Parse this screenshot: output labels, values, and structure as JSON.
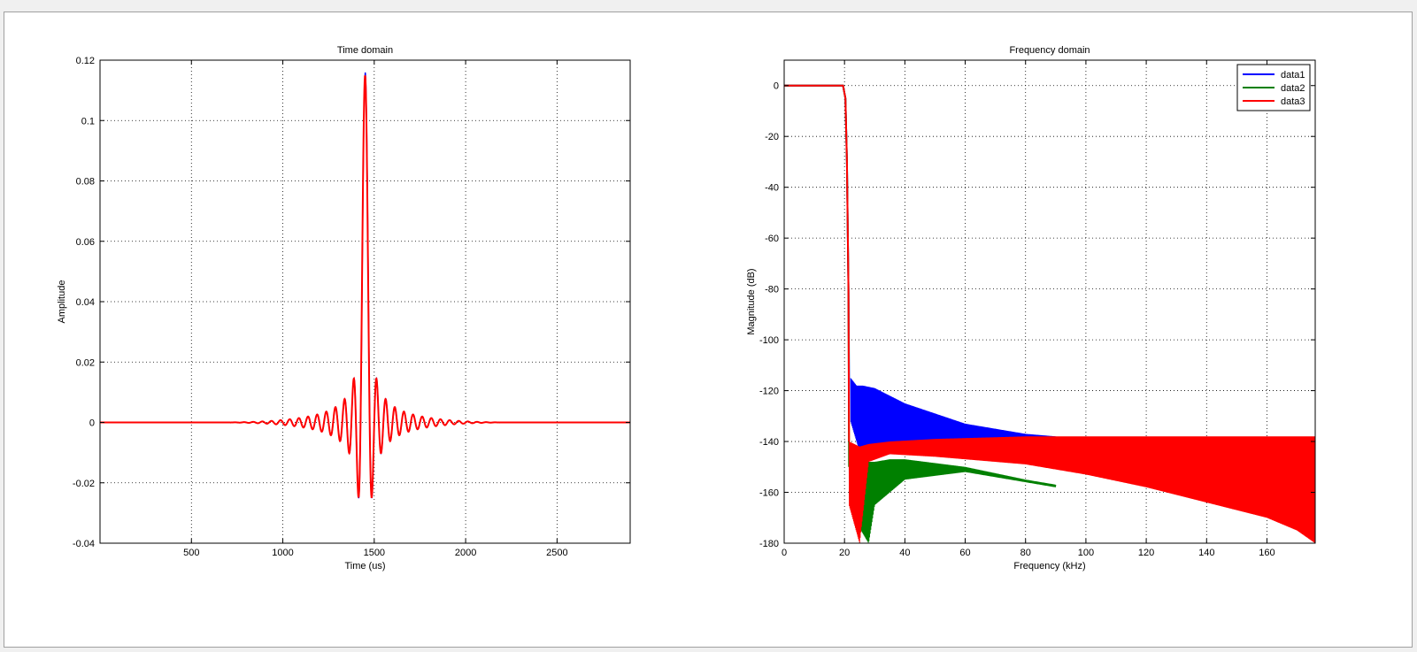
{
  "colors": {
    "data1": "#0000ff",
    "data2": "#008000",
    "data3": "#ff0000"
  },
  "chart_data": [
    {
      "type": "line",
      "title": "Time domain",
      "xlabel": "Time (us)",
      "ylabel": "Amplitude",
      "xlim": [
        0,
        2900
      ],
      "ylim": [
        -0.04,
        0.12
      ],
      "xticks": [
        500,
        1000,
        1500,
        2000,
        2500
      ],
      "xtick_labels": [
        "500",
        "1000",
        "1500",
        "2000",
        "2500"
      ],
      "yticks": [
        -0.04,
        -0.02,
        0,
        0.02,
        0.04,
        0.06,
        0.08,
        0.1,
        0.12
      ],
      "ytick_labels": [
        "-0.04",
        "-0.02",
        "0",
        "0.02",
        "0.04",
        "0.06",
        "0.08",
        "0.1",
        "0.12"
      ],
      "grid": true,
      "series": [
        {
          "color": "#0000ff",
          "peak_x": 1450,
          "peak_y": 0.116,
          "min_y": -0.024
        },
        {
          "color": "#ff0000",
          "peak_x": 1450,
          "peak_y": 0.115,
          "min_y": -0.025
        }
      ]
    },
    {
      "type": "line",
      "title": "Frequency domain",
      "xlabel": "Frequency (kHz)",
      "ylabel": "Magnitude (dB)",
      "xlim": [
        0,
        176
      ],
      "ylim": [
        -180,
        10
      ],
      "xticks": [
        0,
        20,
        40,
        60,
        80,
        100,
        120,
        140,
        160
      ],
      "xtick_labels": [
        "0",
        "20",
        "40",
        "60",
        "80",
        "100",
        "120",
        "140",
        "160"
      ],
      "yticks": [
        -180,
        -160,
        -140,
        -120,
        -100,
        -80,
        -60,
        -40,
        -20,
        0
      ],
      "ytick_labels": [
        "-180",
        "-160",
        "-140",
        "-120",
        "-100",
        "-80",
        "-60",
        "-40",
        "-20",
        "0"
      ],
      "grid": true,
      "legend": {
        "placement": "top-right",
        "entries": [
          "data1",
          "data2",
          "data3"
        ]
      },
      "series": [
        {
          "name": "data1",
          "color": "#0000ff",
          "passband_db": 0,
          "cutoff_khz": 20,
          "stopband_start_khz": 21.5,
          "envelope_x": [
            22,
            24,
            26,
            30,
            40,
            60,
            80,
            90
          ],
          "envelope_upper": [
            -115,
            -118,
            -118,
            -119,
            -125,
            -133,
            -137,
            -138
          ],
          "envelope_lower": [
            -132,
            -140,
            -148,
            -146,
            -144,
            -142,
            -140,
            -139
          ]
        },
        {
          "name": "data2",
          "color": "#008000",
          "passband_db": 0,
          "cutoff_khz": 20,
          "stopband_start_khz": 21.5,
          "envelope_x": [
            24,
            28,
            30,
            35,
            40,
            60,
            80,
            90
          ],
          "envelope_upper": [
            -150,
            -148,
            -148,
            -147,
            -147,
            -150,
            -155,
            -157
          ],
          "envelope_lower": [
            -172,
            -180,
            -165,
            -160,
            -155,
            -152,
            -156,
            -158
          ]
        },
        {
          "name": "data3",
          "color": "#ff0000",
          "passband_db": 0,
          "cutoff_khz": 20,
          "stopband_start_khz": 21.5,
          "envelope_x": [
            21.5,
            25,
            28,
            35,
            50,
            80,
            100,
            120,
            140,
            160,
            170,
            176
          ],
          "envelope_upper": [
            -140,
            -142,
            -141,
            -140,
            -139,
            -138,
            -138,
            -138,
            -138,
            -138,
            -138,
            -138
          ],
          "envelope_lower": [
            -165,
            -180,
            -148,
            -145,
            -146,
            -149,
            -153,
            -158,
            -164,
            -170,
            -175,
            -180
          ]
        }
      ]
    }
  ]
}
